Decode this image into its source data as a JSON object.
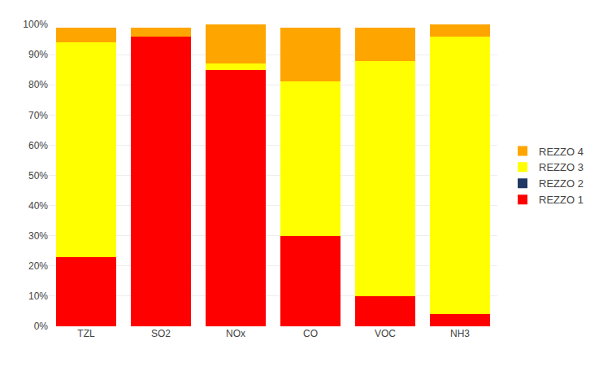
{
  "chart_data": {
    "type": "bar",
    "stacked": true,
    "categories": [
      "TZL",
      "SO2",
      "NOx",
      "CO",
      "VOC",
      "NH3"
    ],
    "series": [
      {
        "name": "REZZO 1",
        "color": "#FF0000",
        "values": [
          23,
          96,
          85,
          30,
          10,
          4
        ]
      },
      {
        "name": "REZZO 2",
        "color": "#1F3864",
        "values": [
          0,
          0,
          0,
          0,
          0,
          0
        ]
      },
      {
        "name": "REZZO 3",
        "color": "#FFFF00",
        "values": [
          71,
          0,
          2,
          51,
          78,
          92
        ]
      },
      {
        "name": "REZZO 4",
        "color": "#FFA500",
        "values": [
          5,
          3,
          13,
          18,
          11,
          4
        ]
      }
    ],
    "ylim": [
      0,
      100
    ],
    "yticks": [
      {
        "value": 0,
        "label": "0%"
      },
      {
        "value": 10,
        "label": "10%"
      },
      {
        "value": 20,
        "label": "20%"
      },
      {
        "value": 30,
        "label": "30%"
      },
      {
        "value": 40,
        "label": "40%"
      },
      {
        "value": 50,
        "label": "50%"
      },
      {
        "value": 60,
        "label": "60%"
      },
      {
        "value": 70,
        "label": "70%"
      },
      {
        "value": 80,
        "label": "80%"
      },
      {
        "value": 90,
        "label": "90%"
      },
      {
        "value": 100,
        "label": "100%"
      }
    ],
    "grid": true,
    "legend": "right"
  }
}
